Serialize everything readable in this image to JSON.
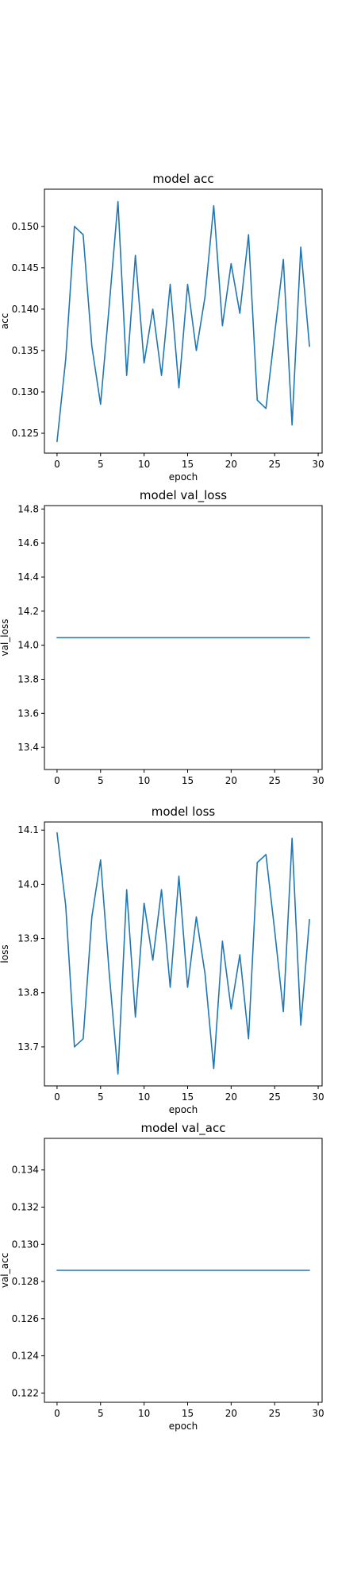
{
  "chart_data": [
    {
      "type": "line",
      "title": "model acc",
      "xlabel": "epoch",
      "ylabel": "acc",
      "xlim": [
        -1.45,
        30.45
      ],
      "ylim": [
        0.1226,
        0.1545
      ],
      "xticks": [
        0,
        5,
        10,
        15,
        20,
        25,
        30
      ],
      "yticks": [
        0.125,
        0.13,
        0.135,
        0.14,
        0.145,
        0.15
      ],
      "ytick_labels": [
        "0.125",
        "0.130",
        "0.135",
        "0.140",
        "0.145",
        "0.150"
      ],
      "grid": false,
      "series": [
        {
          "color": "#1f77b4",
          "x": [
            0,
            1,
            2,
            3,
            4,
            5,
            6,
            7,
            8,
            9,
            10,
            11,
            12,
            13,
            14,
            15,
            16,
            17,
            18,
            19,
            20,
            21,
            22,
            23,
            24,
            25,
            26,
            27,
            28,
            29
          ],
          "values": [
            0.124,
            0.134,
            0.15,
            0.149,
            0.1355,
            0.1285,
            0.1405,
            0.153,
            0.132,
            0.1465,
            0.1335,
            0.14,
            0.132,
            0.143,
            0.1305,
            0.143,
            0.135,
            0.1415,
            0.1525,
            0.138,
            0.1455,
            0.1395,
            0.149,
            0.129,
            0.128,
            0.137,
            0.146,
            0.126,
            0.1475,
            0.1355
          ]
        }
      ]
    },
    {
      "type": "line",
      "title": "model val_loss",
      "xlabel": "",
      "ylabel": "val_loss",
      "xlim": [
        -1.45,
        30.45
      ],
      "ylim": [
        13.27,
        14.82
      ],
      "xticks": [
        0,
        5,
        10,
        15,
        20,
        25,
        30
      ],
      "yticks": [
        13.4,
        13.6,
        13.8,
        14.0,
        14.2,
        14.4,
        14.6,
        14.8
      ],
      "ytick_labels": [
        "13.4",
        "13.6",
        "13.8",
        "14.0",
        "14.2",
        "14.4",
        "14.6",
        "14.8"
      ],
      "grid": false,
      "series": [
        {
          "color": "#1f77b4",
          "x": [
            0,
            1,
            2,
            3,
            4,
            5,
            6,
            7,
            8,
            9,
            10,
            11,
            12,
            13,
            14,
            15,
            16,
            17,
            18,
            19,
            20,
            21,
            22,
            23,
            24,
            25,
            26,
            27,
            28,
            29
          ],
          "values": [
            14.045,
            14.045,
            14.045,
            14.045,
            14.045,
            14.045,
            14.045,
            14.045,
            14.045,
            14.045,
            14.045,
            14.045,
            14.045,
            14.045,
            14.045,
            14.045,
            14.045,
            14.045,
            14.045,
            14.045,
            14.045,
            14.045,
            14.045,
            14.045,
            14.045,
            14.045,
            14.045,
            14.045,
            14.045,
            14.045
          ]
        }
      ]
    },
    {
      "type": "line",
      "title": "model loss",
      "xlabel": "epoch",
      "ylabel": "loss",
      "xlim": [
        -1.45,
        30.45
      ],
      "ylim": [
        13.628,
        14.115
      ],
      "xticks": [
        0,
        5,
        10,
        15,
        20,
        25,
        30
      ],
      "yticks": [
        13.7,
        13.8,
        13.9,
        14.0,
        14.1
      ],
      "ytick_labels": [
        "13.7",
        "13.8",
        "13.9",
        "14.0",
        "14.1"
      ],
      "grid": false,
      "series": [
        {
          "color": "#1f77b4",
          "x": [
            0,
            1,
            2,
            3,
            4,
            5,
            6,
            7,
            8,
            9,
            10,
            11,
            12,
            13,
            14,
            15,
            16,
            17,
            18,
            19,
            20,
            21,
            22,
            23,
            24,
            25,
            26,
            27,
            28,
            29
          ],
          "values": [
            14.095,
            13.96,
            13.7,
            13.715,
            13.94,
            14.045,
            13.835,
            13.65,
            13.99,
            13.755,
            13.965,
            13.86,
            13.99,
            13.81,
            14.015,
            13.81,
            13.94,
            13.835,
            13.66,
            13.895,
            13.77,
            13.87,
            13.715,
            14.04,
            14.055,
            13.915,
            13.765,
            14.085,
            13.74,
            13.935
          ]
        }
      ]
    },
    {
      "type": "line",
      "title": "model val_acc",
      "xlabel": "epoch",
      "ylabel": "val_acc",
      "xlim": [
        -1.45,
        30.45
      ],
      "ylim": [
        0.1215,
        0.1357
      ],
      "xticks": [
        0,
        5,
        10,
        15,
        20,
        25,
        30
      ],
      "yticks": [
        0.122,
        0.124,
        0.126,
        0.128,
        0.13,
        0.132,
        0.134
      ],
      "ytick_labels": [
        "0.122",
        "0.124",
        "0.126",
        "0.128",
        "0.130",
        "0.132",
        "0.134"
      ],
      "grid": false,
      "series": [
        {
          "color": "#1f77b4",
          "x": [
            0,
            1,
            2,
            3,
            4,
            5,
            6,
            7,
            8,
            9,
            10,
            11,
            12,
            13,
            14,
            15,
            16,
            17,
            18,
            19,
            20,
            21,
            22,
            23,
            24,
            25,
            26,
            27,
            28,
            29
          ],
          "values": [
            0.1286,
            0.1286,
            0.1286,
            0.1286,
            0.1286,
            0.1286,
            0.1286,
            0.1286,
            0.1286,
            0.1286,
            0.1286,
            0.1286,
            0.1286,
            0.1286,
            0.1286,
            0.1286,
            0.1286,
            0.1286,
            0.1286,
            0.1286,
            0.1286,
            0.1286,
            0.1286,
            0.1286,
            0.1286,
            0.1286,
            0.1286,
            0.1286,
            0.1286,
            0.1286
          ]
        }
      ]
    }
  ]
}
